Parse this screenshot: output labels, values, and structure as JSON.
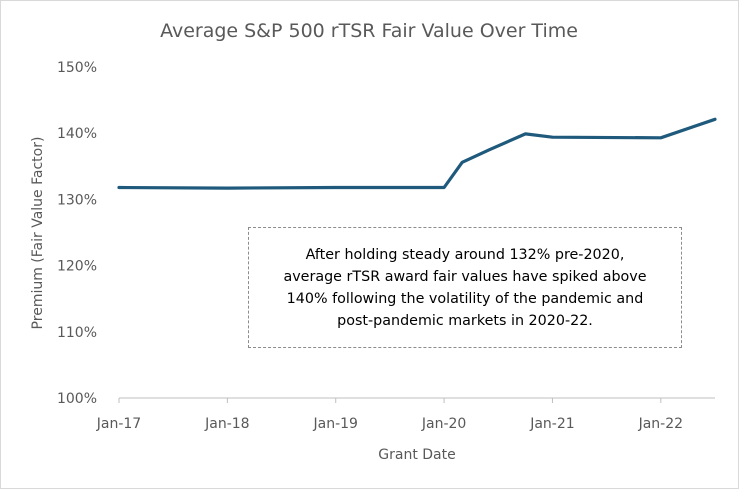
{
  "chart_data": {
    "type": "line",
    "title": "Average S&P 500 rTSR Fair Value Over Time",
    "xlabel": "Grant Date",
    "ylabel": "Premium (Fair Value Factor)",
    "x_ticks": [
      "Jan-17",
      "Jan-18",
      "Jan-19",
      "Jan-20",
      "Jan-21",
      "Jan-22"
    ],
    "y_ticks": [
      "100%",
      "110%",
      "120%",
      "130%",
      "140%",
      "150%"
    ],
    "ylim": [
      100,
      150
    ],
    "xlim": [
      "2017-01",
      "2022-07"
    ],
    "grid": false,
    "line_color": "#1f5a7d",
    "series": [
      {
        "x": [
          "2017-01",
          "2018-01",
          "2019-01",
          "2020-01",
          "2020-03",
          "2020-06",
          "2020-10",
          "2021-01",
          "2022-01",
          "2022-07"
        ],
        "values": [
          131.8,
          131.7,
          131.8,
          131.8,
          135.6,
          137.5,
          139.9,
          139.4,
          139.3,
          142.1
        ]
      }
    ],
    "annotation": [
      "After holding steady around 132% pre-2020,",
      "average rTSR award fair values have spiked above",
      "140% following the volatility of the pandemic and",
      "post-pandemic markets in 2020-22."
    ]
  }
}
